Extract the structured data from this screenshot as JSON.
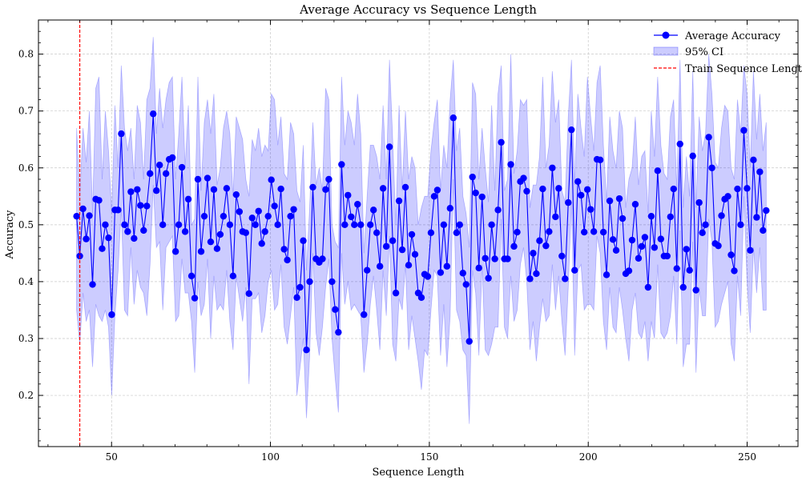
{
  "chart_data": {
    "type": "line",
    "title": "Average Accuracy vs Sequence Length",
    "xlabel": "Sequence Length",
    "ylabel": "Accuracy",
    "xlim": [
      27,
      266
    ],
    "ylim": [
      0.11,
      0.86
    ],
    "x_ticks": [
      50,
      100,
      150,
      200,
      250
    ],
    "x_tick_labels": [
      "50",
      "100",
      "150",
      "200",
      "250"
    ],
    "y_ticks": [
      0.2,
      0.3,
      0.4,
      0.5,
      0.6,
      0.7,
      0.8
    ],
    "y_tick_labels": [
      "0.2",
      "0.3",
      "0.4",
      "0.5",
      "0.6",
      "0.7",
      "0.8"
    ],
    "grid": true,
    "legend_position": "top-right",
    "legend": {
      "line": "Average Accuracy",
      "ci": "95% CI",
      "vline": "Train Sequence Length"
    },
    "train_sequence_length": 40,
    "series": [
      {
        "name": "Average Accuracy",
        "x_start": 39,
        "x_end": 256,
        "values": [
          0.515,
          0.445,
          0.528,
          0.475,
          0.516,
          0.395,
          0.545,
          0.543,
          0.458,
          0.5,
          0.477,
          0.342,
          0.526,
          0.526,
          0.66,
          0.5,
          0.488,
          0.558,
          0.476,
          0.562,
          0.534,
          0.49,
          0.533,
          0.59,
          0.695,
          0.56,
          0.605,
          0.5,
          0.59,
          0.615,
          0.618,
          0.453,
          0.5,
          0.601,
          0.488,
          0.545,
          0.41,
          0.371,
          0.58,
          0.453,
          0.515,
          0.582,
          0.47,
          0.562,
          0.458,
          0.483,
          0.515,
          0.564,
          0.5,
          0.41,
          0.553,
          0.523,
          0.488,
          0.486,
          0.379,
          0.512,
          0.5,
          0.524,
          0.467,
          0.488,
          0.515,
          0.579,
          0.533,
          0.5,
          0.563,
          0.457,
          0.438,
          0.515,
          0.527,
          0.372,
          0.39,
          0.472,
          0.28,
          0.4,
          0.566,
          0.44,
          0.434,
          0.44,
          0.562,
          0.58,
          0.4,
          0.351,
          0.311,
          0.606,
          0.5,
          0.552,
          0.514,
          0.5,
          0.536,
          0.5,
          0.342,
          0.42,
          0.5,
          0.526,
          0.486,
          0.427,
          0.564,
          0.462,
          0.637,
          0.472,
          0.38,
          0.542,
          0.456,
          0.566,
          0.429,
          0.483,
          0.448,
          0.38,
          0.372,
          0.413,
          0.409,
          0.486,
          0.55,
          0.561,
          0.416,
          0.5,
          0.427,
          0.529,
          0.688,
          0.486,
          0.5,
          0.415,
          0.395,
          0.295,
          0.584,
          0.556,
          0.424,
          0.549,
          0.441,
          0.406,
          0.5,
          0.44,
          0.526,
          0.645,
          0.44,
          0.44,
          0.606,
          0.462,
          0.487,
          0.576,
          0.582,
          0.559,
          0.405,
          0.45,
          0.414,
          0.472,
          0.563,
          0.463,
          0.488,
          0.6,
          0.514,
          0.564,
          0.445,
          0.405,
          0.539,
          0.667,
          0.42,
          0.576,
          0.552,
          0.487,
          0.562,
          0.527,
          0.488,
          0.615,
          0.614,
          0.487,
          0.412,
          0.542,
          0.474,
          0.455,
          0.546,
          0.511,
          0.414,
          0.419,
          0.473,
          0.536,
          0.441,
          0.462,
          0.478,
          0.39,
          0.515,
          0.46,
          0.595,
          0.475,
          0.445,
          0.445,
          0.514,
          0.563,
          0.423,
          0.642,
          0.39,
          0.457,
          0.42,
          0.621,
          0.385,
          0.539,
          0.486,
          0.5,
          0.654,
          0.6,
          0.467,
          0.463,
          0.516,
          0.545,
          0.55,
          0.447,
          0.419,
          0.563,
          0.5,
          0.666,
          0.564,
          0.455,
          0.614,
          0.513,
          0.593,
          0.49,
          0.525
        ]
      }
    ],
    "ci_band": {
      "x_start": 39,
      "x_end": 256,
      "upper": [
        0.67,
        0.55,
        0.67,
        0.61,
        0.7,
        0.52,
        0.74,
        0.76,
        0.58,
        0.7,
        0.63,
        0.52,
        0.71,
        0.6,
        0.78,
        0.67,
        0.63,
        0.67,
        0.58,
        0.71,
        0.68,
        0.58,
        0.72,
        0.74,
        0.83,
        0.66,
        0.74,
        0.67,
        0.72,
        0.75,
        0.76,
        0.58,
        0.66,
        0.76,
        0.6,
        0.71,
        0.5,
        0.51,
        0.76,
        0.56,
        0.68,
        0.72,
        0.66,
        0.73,
        0.57,
        0.6,
        0.67,
        0.7,
        0.66,
        0.55,
        0.69,
        0.67,
        0.65,
        0.58,
        0.55,
        0.65,
        0.63,
        0.67,
        0.62,
        0.64,
        0.63,
        0.73,
        0.72,
        0.64,
        0.69,
        0.59,
        0.58,
        0.68,
        0.66,
        0.56,
        0.54,
        0.64,
        0.42,
        0.53,
        0.68,
        0.57,
        0.6,
        0.56,
        0.74,
        0.72,
        0.5,
        0.47,
        0.46,
        0.76,
        0.64,
        0.7,
        0.68,
        0.64,
        0.73,
        0.66,
        0.45,
        0.55,
        0.64,
        0.64,
        0.62,
        0.58,
        0.71,
        0.58,
        0.79,
        0.65,
        0.5,
        0.71,
        0.56,
        0.7,
        0.58,
        0.62,
        0.6,
        0.5,
        0.53,
        0.55,
        0.55,
        0.63,
        0.68,
        0.72,
        0.56,
        0.64,
        0.6,
        0.72,
        0.79,
        0.63,
        0.67,
        0.55,
        0.52,
        0.46,
        0.75,
        0.73,
        0.58,
        0.67,
        0.6,
        0.54,
        0.71,
        0.56,
        0.73,
        0.78,
        0.56,
        0.58,
        0.8,
        0.59,
        0.63,
        0.72,
        0.71,
        0.72,
        0.53,
        0.57,
        0.57,
        0.62,
        0.76,
        0.6,
        0.64,
        0.77,
        0.68,
        0.72,
        0.56,
        0.54,
        0.69,
        0.79,
        0.57,
        0.73,
        0.67,
        0.62,
        0.76,
        0.69,
        0.63,
        0.75,
        0.78,
        0.64,
        0.54,
        0.69,
        0.63,
        0.6,
        0.7,
        0.67,
        0.53,
        0.58,
        0.6,
        0.69,
        0.57,
        0.62,
        0.63,
        0.52,
        0.7,
        0.62,
        0.76,
        0.64,
        0.59,
        0.58,
        0.69,
        0.72,
        0.56,
        0.79,
        0.53,
        0.62,
        0.55,
        0.77,
        0.53,
        0.69,
        0.63,
        0.66,
        0.8,
        0.73,
        0.61,
        0.6,
        0.67,
        0.71,
        0.7,
        0.6,
        0.58,
        0.72,
        0.66,
        0.78,
        0.73,
        0.6,
        0.77,
        0.65,
        0.73,
        0.63,
        0.68
      ],
      "lower": [
        0.35,
        0.29,
        0.38,
        0.33,
        0.35,
        0.25,
        0.36,
        0.34,
        0.33,
        0.35,
        0.32,
        0.2,
        0.34,
        0.42,
        0.53,
        0.35,
        0.34,
        0.46,
        0.36,
        0.42,
        0.39,
        0.38,
        0.34,
        0.43,
        0.57,
        0.46,
        0.47,
        0.35,
        0.46,
        0.47,
        0.48,
        0.33,
        0.34,
        0.44,
        0.38,
        0.38,
        0.33,
        0.24,
        0.4,
        0.34,
        0.36,
        0.44,
        0.3,
        0.41,
        0.35,
        0.36,
        0.35,
        0.42,
        0.33,
        0.28,
        0.41,
        0.37,
        0.33,
        0.39,
        0.22,
        0.37,
        0.37,
        0.38,
        0.31,
        0.34,
        0.4,
        0.42,
        0.35,
        0.36,
        0.43,
        0.32,
        0.29,
        0.34,
        0.39,
        0.2,
        0.25,
        0.3,
        0.16,
        0.27,
        0.45,
        0.31,
        0.27,
        0.32,
        0.39,
        0.44,
        0.3,
        0.23,
        0.17,
        0.45,
        0.36,
        0.4,
        0.35,
        0.36,
        0.35,
        0.34,
        0.24,
        0.29,
        0.36,
        0.41,
        0.35,
        0.28,
        0.42,
        0.34,
        0.48,
        0.29,
        0.26,
        0.37,
        0.35,
        0.43,
        0.28,
        0.34,
        0.3,
        0.26,
        0.21,
        0.28,
        0.27,
        0.35,
        0.42,
        0.41,
        0.27,
        0.36,
        0.25,
        0.34,
        0.58,
        0.35,
        0.33,
        0.28,
        0.27,
        0.15,
        0.42,
        0.38,
        0.27,
        0.43,
        0.28,
        0.27,
        0.29,
        0.32,
        0.32,
        0.51,
        0.32,
        0.3,
        0.41,
        0.33,
        0.35,
        0.43,
        0.46,
        0.4,
        0.28,
        0.33,
        0.26,
        0.32,
        0.37,
        0.33,
        0.34,
        0.43,
        0.35,
        0.41,
        0.33,
        0.27,
        0.39,
        0.54,
        0.27,
        0.42,
        0.43,
        0.35,
        0.36,
        0.36,
        0.35,
        0.48,
        0.45,
        0.33,
        0.28,
        0.39,
        0.32,
        0.31,
        0.39,
        0.35,
        0.3,
        0.26,
        0.35,
        0.38,
        0.31,
        0.3,
        0.33,
        0.26,
        0.33,
        0.3,
        0.43,
        0.31,
        0.3,
        0.31,
        0.34,
        0.41,
        0.29,
        0.49,
        0.25,
        0.29,
        0.29,
        0.47,
        0.24,
        0.39,
        0.34,
        0.34,
        0.51,
        0.47,
        0.32,
        0.33,
        0.36,
        0.38,
        0.4,
        0.29,
        0.26,
        0.41,
        0.34,
        0.55,
        0.4,
        0.31,
        0.46,
        0.38,
        0.46,
        0.35,
        0.35
      ]
    },
    "colors": {
      "line": "#0000ff",
      "ci_fill": "#0000ff",
      "train_line": "#ff0000",
      "grid": "#c8c8c8",
      "axes": "#000000"
    }
  }
}
